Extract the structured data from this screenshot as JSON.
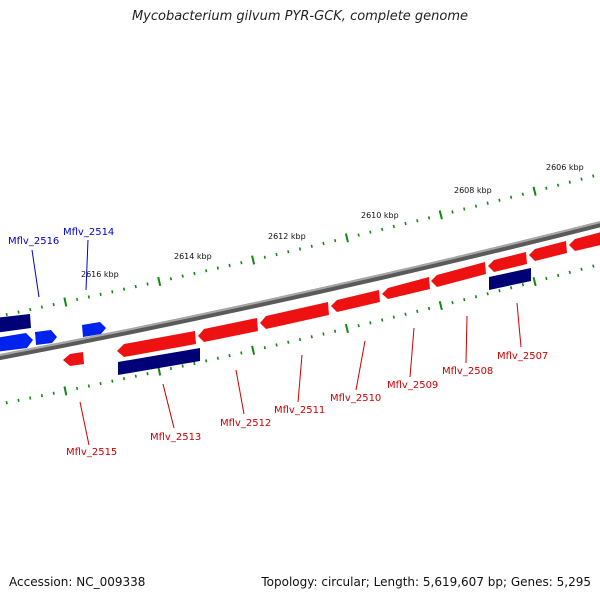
{
  "header": {
    "title": "Mycobacterium gilvum PYR-GCK, complete genome"
  },
  "footer": {
    "accession": "Accession: NC_009338",
    "topology": "Topology: circular; Length: 5,619,607 bp; Genes: 5,295"
  },
  "map": {
    "kbp_labels": [
      "2606 kbp",
      "2608 kbp",
      "2610 kbp",
      "2612 kbp",
      "2614 kbp",
      "2616 kbp"
    ],
    "genes": [
      {
        "label": "Mflv_2516",
        "strand": "+",
        "color": "#0000cc"
      },
      {
        "label": "Mflv_2514",
        "strand": "+",
        "color": "#0000cc"
      },
      {
        "label": "Mflv_2515",
        "strand": "-",
        "color": "#cc0000"
      },
      {
        "label": "Mflv_2513",
        "strand": "-",
        "color": "#cc0000"
      },
      {
        "label": "Mflv_2512",
        "strand": "-",
        "color": "#cc0000"
      },
      {
        "label": "Mflv_2511",
        "strand": "-",
        "color": "#cc0000"
      },
      {
        "label": "Mflv_2510",
        "strand": "-",
        "color": "#cc0000"
      },
      {
        "label": "Mflv_2509",
        "strand": "-",
        "color": "#cc0000"
      },
      {
        "label": "Mflv_2508",
        "strand": "-",
        "color": "#cc0000"
      },
      {
        "label": "Mflv_2507",
        "strand": "-",
        "color": "#cc0000"
      }
    ],
    "colors": {
      "forward_gene": "#0022ee",
      "reverse_gene": "#ee1111",
      "dark_blue_feature": "#000077",
      "backbone": "#888888",
      "tick": "#118811"
    }
  }
}
